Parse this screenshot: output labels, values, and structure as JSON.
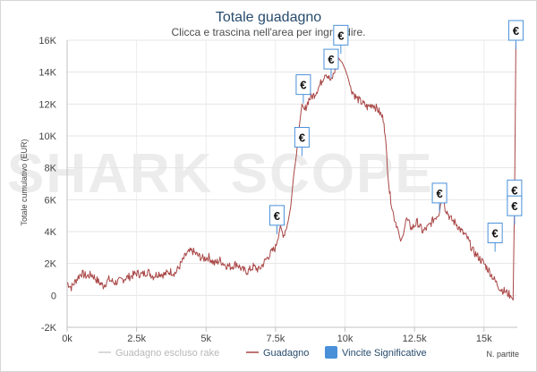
{
  "chart_data": {
    "type": "line",
    "title": "Totale guadagno",
    "subtitle": "Clicca e trascina nell'area per ingrandire.",
    "ylabel": "Totale cumulativo (EUR)",
    "xlabel": "N. partite",
    "watermark": "SHARK SCOPE",
    "xlim": [
      0,
      16200
    ],
    "ylim": [
      -2000,
      16000
    ],
    "x_ticks": [
      0,
      2500,
      5000,
      7500,
      10000,
      12500,
      15000
    ],
    "x_tick_labels": [
      "0k",
      "2.5k",
      "5k",
      "7.5k",
      "10k",
      "12.5k",
      "15k"
    ],
    "y_ticks": [
      -2000,
      0,
      2000,
      4000,
      6000,
      8000,
      10000,
      12000,
      14000,
      16000
    ],
    "y_tick_labels": [
      "-2K",
      "0",
      "2K",
      "4K",
      "6K",
      "8K",
      "10K",
      "12K",
      "14K",
      "16K"
    ],
    "grid": true,
    "legend_position": "bottom",
    "series": [
      {
        "name": "Guadagno",
        "color": "#a94646",
        "x": [
          0,
          150,
          300,
          500,
          700,
          900,
          1100,
          1300,
          1500,
          1700,
          1900,
          2100,
          2300,
          2500,
          2700,
          2900,
          3100,
          3300,
          3500,
          3700,
          3900,
          4100,
          4300,
          4500,
          4700,
          4900,
          5100,
          5300,
          5500,
          5700,
          5900,
          6100,
          6300,
          6500,
          6700,
          6900,
          7100,
          7300,
          7500,
          7650,
          7800,
          7950,
          8050,
          8150,
          8250,
          8350,
          8450,
          8550,
          8700,
          8900,
          9100,
          9300,
          9500,
          9650,
          9800,
          9900,
          10000,
          10100,
          10200,
          10400,
          10600,
          10800,
          11000,
          11200,
          11400,
          11600,
          11750,
          11900,
          12000,
          12100,
          12200,
          12400,
          12600,
          12800,
          13000,
          13200,
          13400,
          13500,
          13600,
          13800,
          14000,
          14200,
          14400,
          14600,
          14800,
          15000,
          15200,
          15400,
          15600,
          15800,
          15950,
          16050,
          16100,
          16150
        ],
        "values": [
          800,
          500,
          900,
          1400,
          1200,
          1300,
          900,
          600,
          1000,
          800,
          900,
          1100,
          1200,
          1400,
          1300,
          1500,
          1200,
          1400,
          1300,
          1500,
          1400,
          2000,
          2600,
          2800,
          2500,
          2300,
          2400,
          2000,
          2200,
          1900,
          1800,
          2000,
          1600,
          1500,
          1800,
          1600,
          2100,
          2600,
          3000,
          4200,
          3800,
          4600,
          5600,
          7500,
          8800,
          10500,
          12000,
          11600,
          12300,
          12600,
          13200,
          14000,
          13400,
          14200,
          14800,
          14600,
          14200,
          13700,
          13000,
          12400,
          12100,
          11800,
          12000,
          11600,
          11000,
          6500,
          5000,
          4200,
          3400,
          3800,
          4800,
          4200,
          4600,
          4000,
          4300,
          4800,
          5200,
          6500,
          5500,
          4800,
          4500,
          4000,
          3600,
          2800,
          2400,
          2000,
          1500,
          900,
          400,
          200,
          0,
          -300,
          6000,
          15800
        ]
      },
      {
        "name": "Guadagno escluso rake",
        "color": "#cccccc",
        "x": [],
        "values": []
      }
    ],
    "flags": [
      {
        "x": 7550,
        "y": 4400
      },
      {
        "x": 8450,
        "y": 9300
      },
      {
        "x": 8500,
        "y": 12600
      },
      {
        "x": 9500,
        "y": 14200
      },
      {
        "x": 9850,
        "y": 15700
      },
      {
        "x": 13400,
        "y": 5800
      },
      {
        "x": 15400,
        "y": 3300
      },
      {
        "x": 16100,
        "y": 6000
      },
      {
        "x": 16100,
        "y": 5000
      },
      {
        "x": 16150,
        "y": 16000
      }
    ]
  },
  "legend": {
    "items": [
      {
        "label": "Guadagno escluso rake",
        "color": "#cccccc",
        "marker": "line"
      },
      {
        "label": "Guadagno",
        "color": "#a94646",
        "marker": "line"
      },
      {
        "label": "Vincite Significative",
        "color": "#4a90d9",
        "marker": "box"
      }
    ]
  },
  "flag_symbol": "€"
}
